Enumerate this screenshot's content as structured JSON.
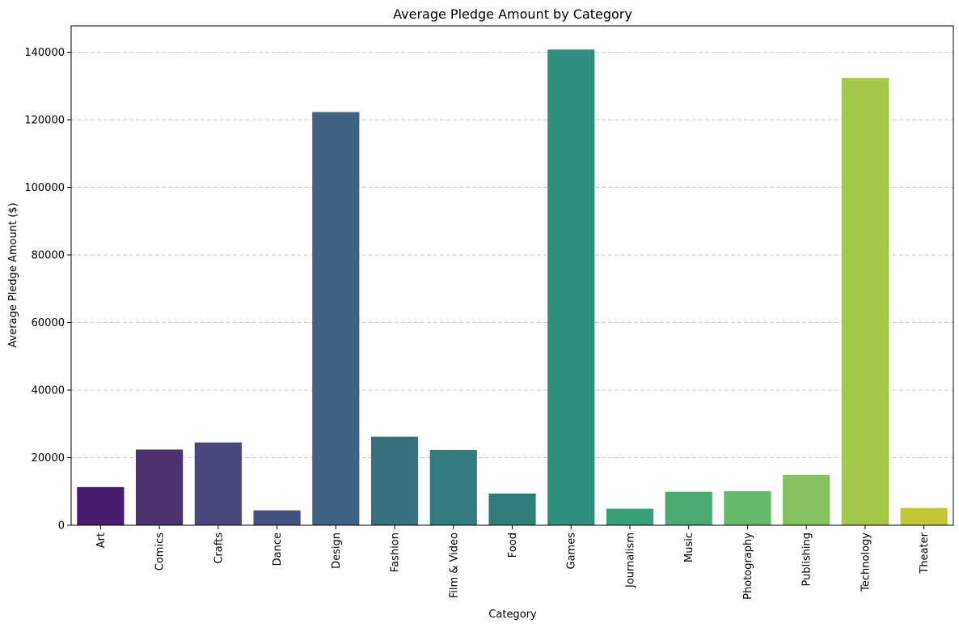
{
  "chart_data": {
    "type": "bar",
    "title": "Average Pledge Amount by Category",
    "xlabel": "Category",
    "ylabel": "Average Pledge Amount ($)",
    "categories": [
      "Art",
      "Comics",
      "Crafts",
      "Dance",
      "Design",
      "Fashion",
      "Film & Video",
      "Food",
      "Games",
      "Journalism",
      "Music",
      "Photography",
      "Publishing",
      "Technology",
      "Theater"
    ],
    "values": [
      11300,
      22400,
      24500,
      4400,
      122300,
      26200,
      22300,
      9400,
      140800,
      4900,
      9900,
      10100,
      14900,
      132400,
      5100
    ],
    "colors": [
      "#481c6e",
      "#4a336e",
      "#48487c",
      "#444f82",
      "#3e6282",
      "#38717e",
      "#317a7e",
      "#2e7e7a",
      "#2e907c",
      "#35a07a",
      "#4aab72",
      "#63ba68",
      "#84c25f",
      "#a3c845",
      "#c4c832"
    ],
    "ylim": [
      0,
      147800
    ],
    "yticks": [
      0,
      20000,
      40000,
      60000,
      80000,
      100000,
      120000,
      140000
    ],
    "grid": "y-dashed",
    "legend": "none"
  }
}
